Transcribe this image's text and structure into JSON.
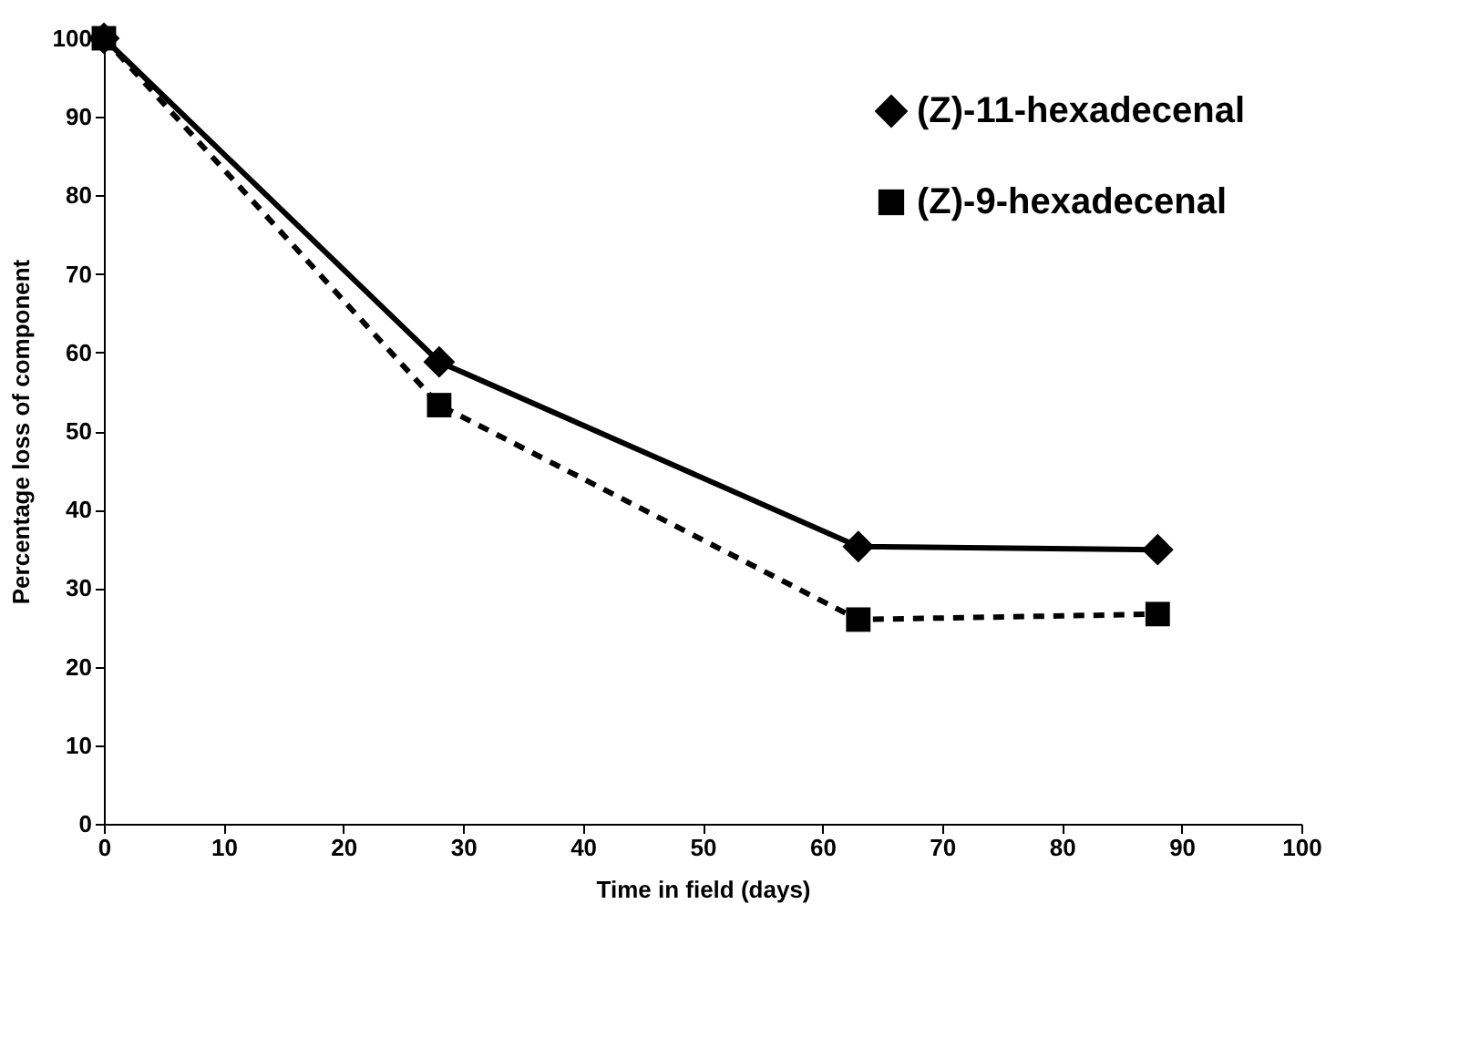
{
  "chart_data": {
    "type": "line",
    "xlabel": "Time in field (days)",
    "ylabel": "Percentage loss of component",
    "x": [
      0,
      28,
      63,
      88
    ],
    "series": [
      {
        "name": "(Z)-11-hexadecenal",
        "color": "#000000",
        "marker": "diamond",
        "line_style": "solid",
        "values": [
          100,
          58.8,
          35.3,
          34.9
        ]
      },
      {
        "name": "(Z)-9-hexadecenal",
        "color": "#000000",
        "marker": "square",
        "line_style": "dashed",
        "values": [
          100,
          53.3,
          26,
          26.7
        ]
      }
    ],
    "xlim": [
      0,
      100
    ],
    "xticks": [
      0,
      10,
      20,
      30,
      40,
      50,
      60,
      70,
      80,
      90,
      100
    ],
    "ylim": [
      0,
      100
    ],
    "yticks": [
      0,
      10,
      20,
      30,
      40,
      50,
      60,
      70,
      80,
      90,
      100
    ],
    "grid": false,
    "legend": "top right"
  }
}
